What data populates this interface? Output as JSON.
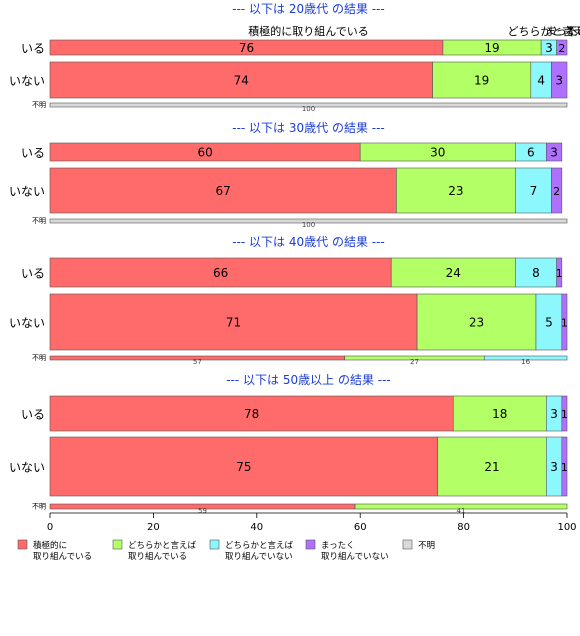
{
  "chart_data": {
    "type": "bar",
    "orientation": "horizontal",
    "stacked": true,
    "xlim": [
      0,
      100
    ],
    "xticks": [
      "0",
      "20",
      "40",
      "60",
      "80",
      "100"
    ],
    "grid": false,
    "legend_position": "bottom",
    "series": [
      {
        "name": "積極的に\n取り組んでいる",
        "color": "#ff6b6b"
      },
      {
        "name": "どちらかと言えば\n取り組んでいる",
        "color": "#b3ff66"
      },
      {
        "name": "どちらかと言えば\n取り組んでいない",
        "color": "#8cf8fd"
      },
      {
        "name": "まったく\n取り組んでいない",
        "color": "#b070ff"
      },
      {
        "name": "不明",
        "color": "#d9d9d9"
      }
    ],
    "top_annotations": [
      {
        "text": "積極的に取り組んでいる",
        "at": 50
      },
      {
        "text": "どちらかと言え…",
        "at": 97
      },
      {
        "text": "まった…",
        "at": 100
      },
      {
        "text": "不明",
        "at": 102
      }
    ],
    "panels": [
      {
        "title": "--- 以下は 20歳代 の結果 ---",
        "rows": [
          {
            "label": "いる",
            "values": [
              76,
              19,
              3,
              2,
              0
            ]
          },
          {
            "label": "いない",
            "values": [
              74,
              19,
              4,
              3,
              0
            ]
          },
          {
            "label": "不明",
            "values": [
              0,
              0,
              0,
              0,
              100
            ]
          }
        ]
      },
      {
        "title": "--- 以下は 30歳代 の結果 ---",
        "rows": [
          {
            "label": "いる",
            "values": [
              60,
              30,
              6,
              3,
              0
            ]
          },
          {
            "label": "いない",
            "values": [
              67,
              23,
              7,
              2,
              0
            ]
          },
          {
            "label": "不明",
            "values": [
              0,
              0,
              0,
              0,
              100
            ]
          }
        ]
      },
      {
        "title": "--- 以下は 40歳代 の結果 ---",
        "rows": [
          {
            "label": "いる",
            "values": [
              66,
              24,
              8,
              1,
              0
            ]
          },
          {
            "label": "いない",
            "values": [
              71,
              23,
              5,
              1,
              0
            ]
          },
          {
            "label": "不明",
            "values": [
              57,
              27,
              16,
              0,
              0
            ]
          }
        ]
      },
      {
        "title": "--- 以下は 50歳以上 の結果 ---",
        "rows": [
          {
            "label": "いる",
            "values": [
              78,
              18,
              3,
              1,
              0
            ]
          },
          {
            "label": "いない",
            "values": [
              75,
              21,
              3,
              1,
              0
            ]
          },
          {
            "label": "不明",
            "values": [
              59,
              41,
              0,
              0,
              0
            ]
          }
        ]
      }
    ]
  }
}
